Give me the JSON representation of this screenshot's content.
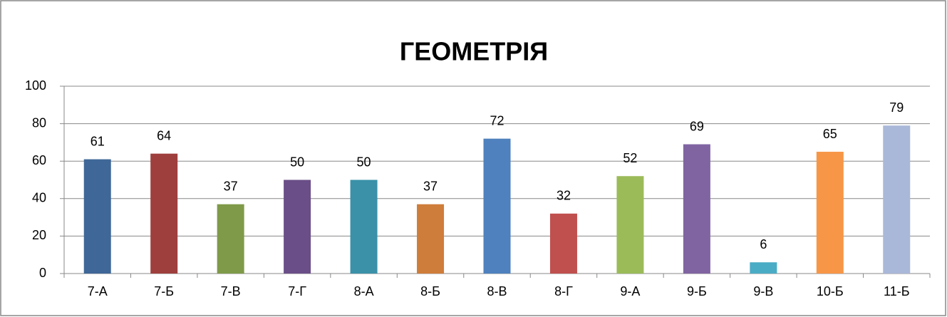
{
  "chart_data": {
    "type": "bar",
    "title": "ГЕОМЕТРІЯ",
    "categories": [
      "7-А",
      "7-Б",
      "7-В",
      "7-Г",
      "8-А",
      "8-Б",
      "8-В",
      "8-Г",
      "9-А",
      "9-Б",
      "9-В",
      "10-Б",
      "11-Б"
    ],
    "values": [
      61,
      64,
      37,
      50,
      50,
      37,
      72,
      32,
      52,
      69,
      6,
      65,
      79
    ],
    "colors": [
      "#3f6797",
      "#9e3f3d",
      "#7f9a48",
      "#6a4e87",
      "#3a91a8",
      "#cf7d3a",
      "#4e81bd",
      "#c0504d",
      "#9bbb59",
      "#8064a2",
      "#4bacc6",
      "#f79646",
      "#a9b8d8"
    ],
    "ylim": [
      0,
      100
    ],
    "yticks": [
      0,
      20,
      40,
      60,
      80,
      100
    ],
    "grid": true
  }
}
